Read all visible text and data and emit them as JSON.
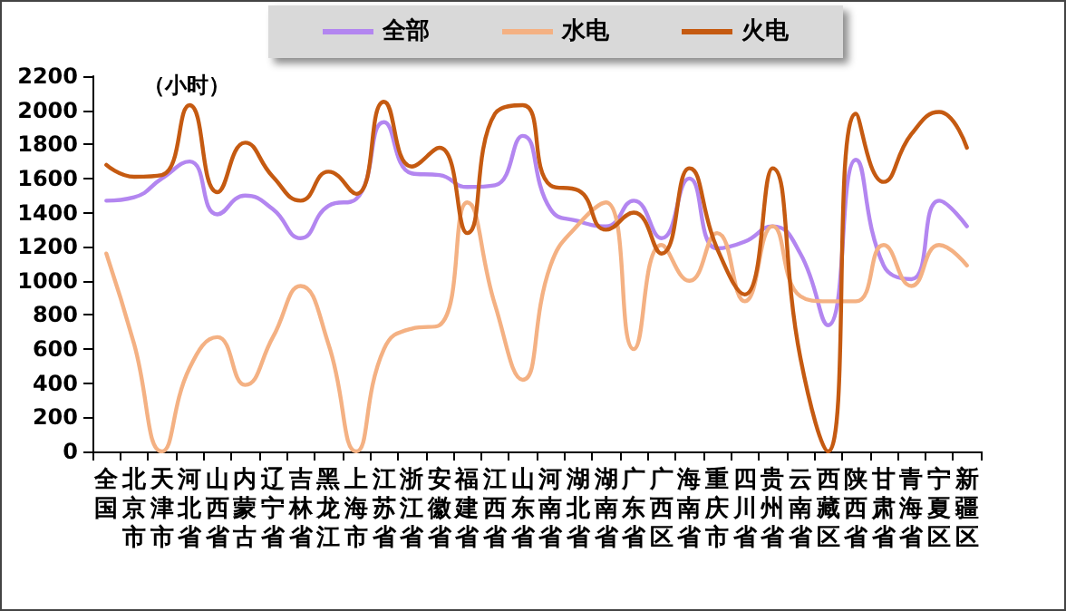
{
  "chart_data": {
    "type": "line",
    "annotations": [
      "（小时）"
    ],
    "categories": [
      "全国",
      "北京市",
      "天津市",
      "河北省",
      "山西省",
      "内蒙古",
      "辽宁省",
      "吉林省",
      "黑龙江",
      "上海市",
      "江苏省",
      "浙江省",
      "安徽省",
      "福建省",
      "江西省",
      "山东省",
      "河南省",
      "湖北省",
      "湖南省",
      "广东省",
      "广西区",
      "海南省",
      "重庆市",
      "四川省",
      "贵州省",
      "云南省",
      "西藏区",
      "陕西省",
      "甘肃省",
      "青海省",
      "宁夏区",
      "新疆区"
    ],
    "series": [
      {
        "name": "全部",
        "color": "#b386f0",
        "values": [
          1470,
          1490,
          1600,
          1700,
          1390,
          1500,
          1420,
          1250,
          1440,
          1480,
          1930,
          1630,
          1620,
          1550,
          1560,
          1850,
          1420,
          1350,
          1320,
          1470,
          1250,
          1600,
          1190,
          1230,
          1320,
          1160,
          740,
          1710,
          1090,
          1010,
          1470,
          1320
        ]
      },
      {
        "name": "水电",
        "color": "#f4b183",
        "values": [
          1160,
          630,
          0,
          490,
          670,
          390,
          670,
          970,
          630,
          0,
          600,
          720,
          740,
          1460,
          860,
          420,
          1090,
          1330,
          1460,
          600,
          1210,
          1000,
          1280,
          880,
          1320,
          910,
          880,
          880,
          1210,
          970,
          1210,
          1090
        ]
      },
      {
        "name": "火电",
        "color": "#c55a11",
        "values": [
          1680,
          1610,
          1620,
          2030,
          1520,
          1810,
          1610,
          1470,
          1640,
          1510,
          2050,
          1670,
          1780,
          1280,
          1980,
          2030,
          1560,
          1530,
          1300,
          1400,
          1160,
          1660,
          1190,
          920,
          1660,
          550,
          0,
          1980,
          1580,
          1860,
          1990,
          1780
        ]
      }
    ],
    "ylim": [
      0,
      2200
    ],
    "yticks": [
      0,
      200,
      400,
      600,
      800,
      1000,
      1200,
      1400,
      1600,
      1800,
      2000,
      2200
    ],
    "grid": false,
    "legend": "top right",
    "marker": "none",
    "line_style": "solid"
  }
}
